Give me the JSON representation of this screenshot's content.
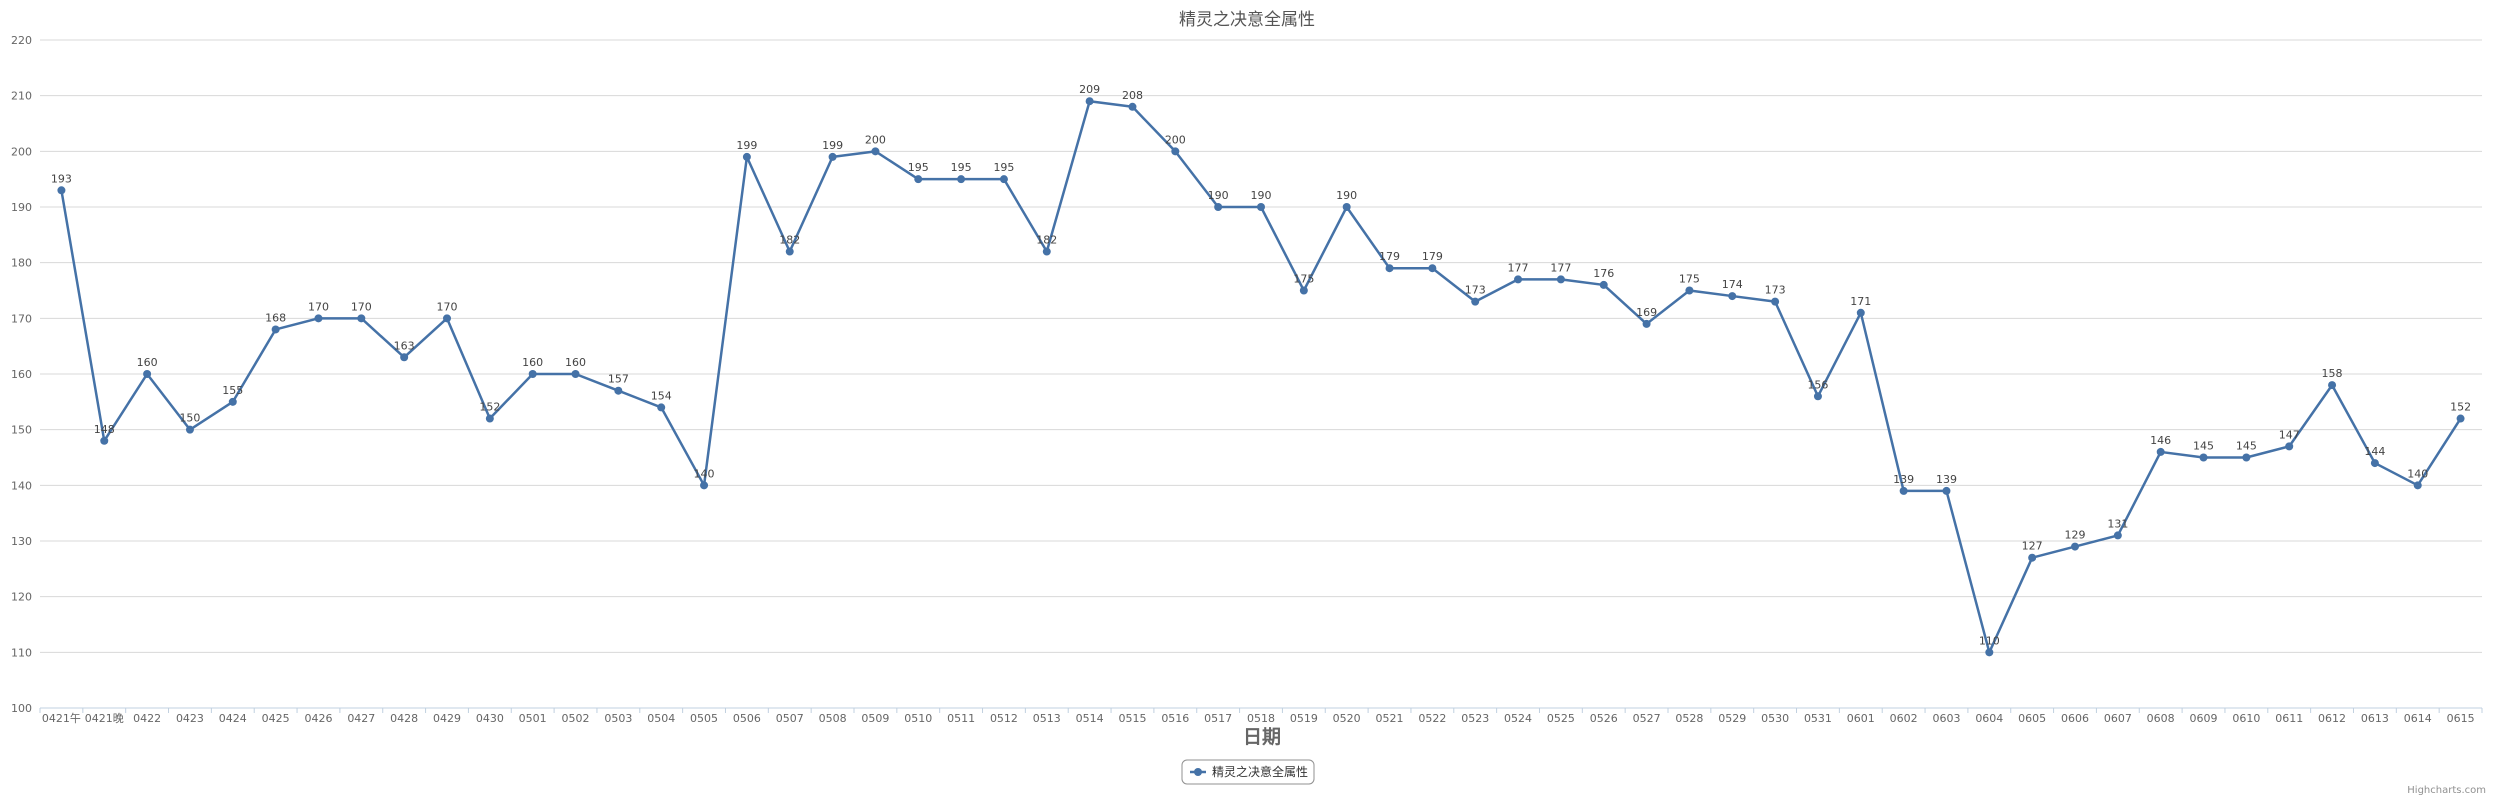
{
  "chart_data": {
    "type": "line",
    "title": "精灵之决意全属性",
    "xlabel": "日期",
    "ylabel": "",
    "ylim": [
      100,
      220
    ],
    "y_ticks": [
      100,
      110,
      120,
      130,
      140,
      150,
      160,
      170,
      180,
      190,
      200,
      210,
      220
    ],
    "categories": [
      "0421午",
      "0421晚",
      "0422",
      "0423",
      "0424",
      "0425",
      "0426",
      "0427",
      "0428",
      "0429",
      "0430",
      "0501",
      "0502",
      "0503",
      "0504",
      "0505",
      "0506",
      "0507",
      "0508",
      "0509",
      "0510",
      "0511",
      "0512",
      "0513",
      "0514",
      "0515",
      "0516",
      "0517",
      "0518",
      "0519",
      "0520",
      "0521",
      "0522",
      "0523",
      "0524",
      "0525",
      "0526",
      "0527",
      "0528",
      "0529",
      "0530",
      "0531",
      "0601",
      "0602",
      "0603",
      "0604",
      "0605",
      "0606",
      "0607",
      "0608",
      "0609",
      "0610",
      "0611",
      "0612",
      "0613",
      "0614",
      "0615"
    ],
    "series": [
      {
        "name": "精灵之决意全属性",
        "color": "#4572a7",
        "values": [
          193,
          148,
          160,
          150,
          155,
          168,
          170,
          170,
          163,
          170,
          152,
          160,
          160,
          157,
          154,
          140,
          199,
          182,
          199,
          200,
          195,
          195,
          195,
          182,
          209,
          208,
          200,
          190,
          190,
          175,
          190,
          179,
          179,
          173,
          177,
          177,
          176,
          169,
          175,
          174,
          173,
          156,
          171,
          139,
          139,
          110,
          127,
          129,
          131,
          146,
          145,
          145,
          147,
          158,
          144,
          140,
          152
        ]
      }
    ],
    "grid": true,
    "legend": "bottom-center",
    "data_labels": true
  },
  "credit": "Highcharts.com"
}
